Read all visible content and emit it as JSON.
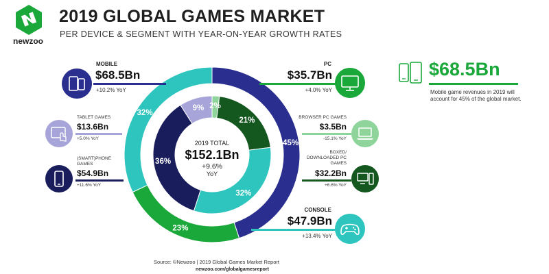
{
  "header": {
    "title": "2019 GLOBAL GAMES MARKET",
    "subtitle": "PER DEVICE & SEGMENT WITH YEAR-ON-YEAR GROWTH RATES",
    "logo": "newzoo"
  },
  "segments": {
    "mobile": {
      "label": "MOBILE",
      "value": "$68.5Bn",
      "yoy": "+10.2% YoY",
      "icon": "mobile-devices-icon"
    },
    "tablet": {
      "label": "TABLET GAMES",
      "value": "$13.6Bn",
      "yoy": "+5.0% YoY",
      "icon": "tablet-touch-icon"
    },
    "smartphone": {
      "label": "(SMART)PHONE GAMES",
      "value": "$54.9Bn",
      "yoy": "+11.6% YoY",
      "icon": "smartphone-icon"
    },
    "pc": {
      "label": "PC",
      "value": "$35.7Bn",
      "yoy": "+4.0% YoY",
      "icon": "monitor-icon"
    },
    "browser": {
      "label": "BROWSER PC GAMES",
      "value": "$3.5Bn",
      "yoy": "-15.1% YoY",
      "icon": "laptop-icon"
    },
    "boxed": {
      "label": "BOXED/ DOWNLOADED PC GAMES",
      "value": "$32.2Bn",
      "yoy": "+6.6% YoY",
      "icon": "desktop-tower-icon"
    },
    "console": {
      "label": "CONSOLE",
      "value": "$47.9Bn",
      "yoy": "+13.4% YoY",
      "icon": "gamepad-icon"
    }
  },
  "center": {
    "label": "2019 TOTAL",
    "value": "$152.1Bn",
    "growth": "+9.6%",
    "unit": "YoY"
  },
  "highlight": {
    "value": "$68.5Bn",
    "text": "Mobile game revenues in 2019 will account for 45% of the global market.",
    "icon": "phone-tablet-icon"
  },
  "footer": {
    "source": "Source: ©Newzoo | 2019 Global Games Market Report",
    "url": "newzoo.com/globalgamesreport"
  },
  "colors": {
    "mobile": "#2a2f8f",
    "smartphone": "#191d5c",
    "tablet": "#a7a4da",
    "pc": "#1aa83a",
    "boxed": "#14571f",
    "browser": "#8fd49a",
    "console": "#2ec5be"
  },
  "chart_data": {
    "type": "pie",
    "title": "2019 GLOBAL GAMES MARKET",
    "outer": [
      {
        "name": "MOBILE",
        "value": 45,
        "label": "45%",
        "color": "#2a2f8f"
      },
      {
        "name": "PC",
        "value": 23,
        "label": "23%",
        "color": "#1aa83a"
      },
      {
        "name": "CONSOLE",
        "value": 32,
        "label": "32%",
        "color": "#2ec5be"
      }
    ],
    "inner": [
      {
        "name": "BROWSER PC GAMES",
        "value": 2,
        "label": "2%",
        "color": "#8fd49a"
      },
      {
        "name": "BOXED/ DOWNLOADED PC GAMES",
        "value": 21,
        "label": "21%",
        "color": "#14571f"
      },
      {
        "name": "CONSOLE",
        "value": 32,
        "label": "32%",
        "color": "#2ec5be"
      },
      {
        "name": "(SMART)PHONE GAMES",
        "value": 36,
        "label": "36%",
        "color": "#191d5c"
      },
      {
        "name": "TABLET GAMES",
        "value": 9,
        "label": "9%",
        "color": "#a7a4da"
      }
    ]
  }
}
